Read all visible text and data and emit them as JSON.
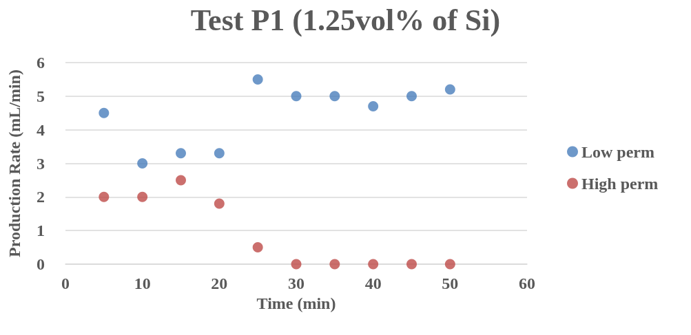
{
  "chart_data": {
    "type": "scatter",
    "title": "Test P1 (1.25vol% of Si)",
    "xlabel": "Time (min)",
    "ylabel": "Production Rate (mL/min)",
    "x": [
      5,
      10,
      15,
      20,
      25,
      30,
      35,
      40,
      45,
      50
    ],
    "series": [
      {
        "name": "Low perm",
        "color": "#4a7ebb",
        "values": [
          4.5,
          3.0,
          3.3,
          3.3,
          5.5,
          5.0,
          5.0,
          4.7,
          5.0,
          5.2
        ]
      },
      {
        "name": "High perm",
        "color": "#be4b48",
        "values": [
          2.0,
          2.0,
          2.5,
          1.8,
          0.5,
          0,
          0,
          0,
          0,
          0
        ]
      }
    ],
    "xlim": [
      0,
      60
    ],
    "xticks": [
      0,
      10,
      20,
      30,
      40,
      50,
      60
    ],
    "ylim": [
      0,
      6
    ],
    "yticks": [
      0,
      1,
      2,
      3,
      4,
      5,
      6
    ],
    "grid": "y",
    "legend": "right",
    "marker": "circle"
  }
}
